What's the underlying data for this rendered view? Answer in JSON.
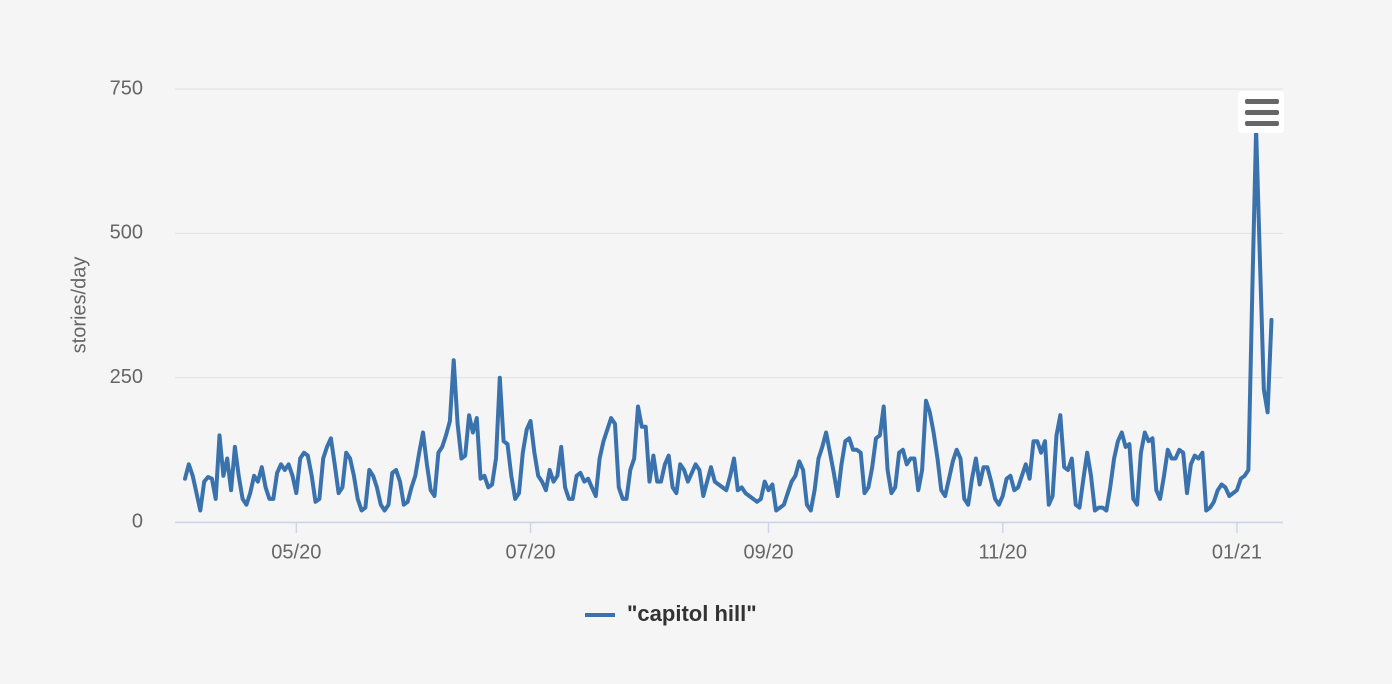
{
  "chart_data": {
    "type": "line",
    "y_label": "stories/day",
    "series": [
      {
        "name": "\"capitol hill\"",
        "color": "#3a72ad",
        "values": [
          75,
          100,
          80,
          50,
          20,
          70,
          78,
          75,
          40,
          150,
          80,
          110,
          55,
          130,
          80,
          40,
          30,
          50,
          80,
          70,
          95,
          60,
          40,
          40,
          85,
          100,
          90,
          100,
          80,
          50,
          110,
          120,
          115,
          80,
          35,
          40,
          110,
          130,
          145,
          100,
          50,
          60,
          120,
          110,
          80,
          40,
          20,
          25,
          90,
          80,
          60,
          30,
          20,
          30,
          85,
          90,
          70,
          30,
          35,
          60,
          80,
          120,
          155,
          100,
          55,
          45,
          120,
          130,
          150,
          175,
          280,
          170,
          110,
          115,
          185,
          155,
          180,
          75,
          80,
          60,
          65,
          110,
          250,
          140,
          135,
          80,
          40,
          50,
          120,
          160,
          175,
          120,
          80,
          70,
          55,
          90,
          70,
          80,
          130,
          60,
          40,
          40,
          80,
          85,
          70,
          75,
          60,
          45,
          110,
          140,
          160,
          180,
          170,
          60,
          40,
          40,
          90,
          110,
          200,
          165,
          165,
          70,
          115,
          70,
          70,
          100,
          115,
          60,
          50,
          100,
          90,
          70,
          85,
          100,
          90,
          45,
          70,
          95,
          70,
          65,
          60,
          55,
          80,
          110,
          55,
          60,
          50,
          45,
          40,
          35,
          40,
          70,
          55,
          65,
          20,
          25,
          30,
          50,
          70,
          80,
          105,
          90,
          30,
          20,
          55,
          110,
          130,
          155,
          120,
          85,
          45,
          100,
          140,
          145,
          125,
          125,
          120,
          50,
          60,
          95,
          145,
          150,
          200,
          90,
          50,
          60,
          120,
          125,
          100,
          110,
          110,
          55,
          90,
          210,
          190,
          155,
          110,
          55,
          45,
          75,
          105,
          125,
          110,
          40,
          30,
          75,
          110,
          65,
          95,
          95,
          70,
          40,
          30,
          45,
          75,
          80,
          55,
          60,
          80,
          100,
          75,
          140,
          140,
          120,
          140,
          30,
          45,
          150,
          185,
          95,
          90,
          110,
          30,
          25,
          75,
          120,
          80,
          20,
          25,
          25,
          20,
          60,
          110,
          140,
          155,
          130,
          135,
          40,
          30,
          120,
          155,
          140,
          145,
          55,
          40,
          80,
          125,
          110,
          110,
          125,
          120,
          50,
          100,
          115,
          110,
          120,
          20,
          25,
          35,
          55,
          65,
          60,
          45,
          50,
          55,
          75,
          80,
          90,
          400,
          680,
          450,
          230,
          190,
          350
        ]
      }
    ],
    "xlim": [
      -2.6,
      286
    ],
    "xticks": [
      {
        "value": 29,
        "label": "05/20"
      },
      {
        "value": 90,
        "label": "07/20"
      },
      {
        "value": 152,
        "label": "09/20"
      },
      {
        "value": 213,
        "label": "11/20"
      },
      {
        "value": 274,
        "label": "01/21"
      }
    ],
    "ylim": [
      0,
      750
    ],
    "yticks": [
      0,
      250,
      500,
      750
    ],
    "grid": true,
    "legend": "bottom"
  }
}
